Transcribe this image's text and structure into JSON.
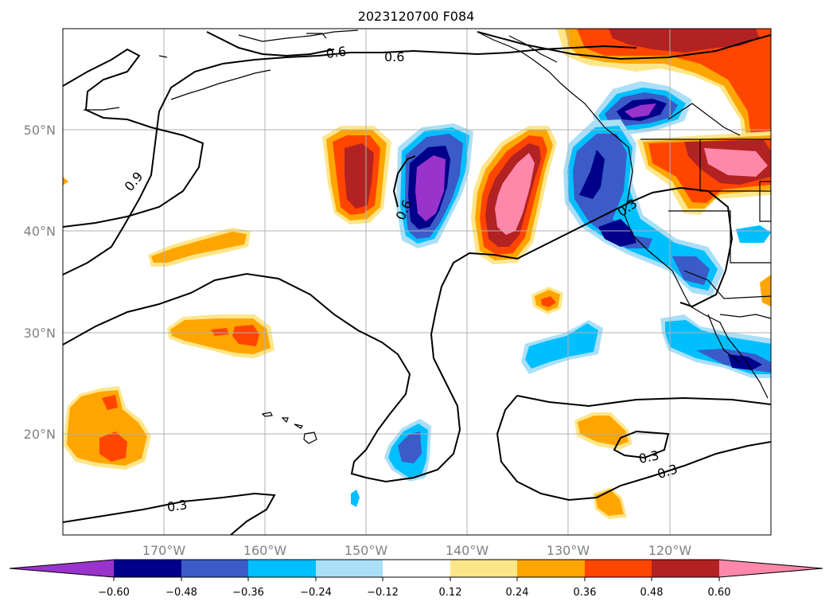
{
  "map": {
    "title": "2023120700 F084",
    "projection": "cylindrical",
    "lon_range": [
      -180,
      -110
    ],
    "lat_range": [
      10,
      60
    ],
    "grid": true,
    "lat_tick_labels": [
      "20°N",
      "30°N",
      "40°N",
      "50°N"
    ],
    "lon_tick_labels": [
      "170°W",
      "160°W",
      "150°W",
      "140°W",
      "130°W",
      "120°W"
    ],
    "contour_labels": [
      "0.6",
      "0.9",
      "0.6",
      "0.3",
      "0.6",
      "0.3",
      "0.3",
      "0.3"
    ]
  },
  "colorbar": {
    "tick_labels": [
      "−0.60",
      "−0.48",
      "−0.36",
      "−0.24",
      "−0.12",
      "0.12",
      "0.24",
      "0.36",
      "0.48",
      "0.60"
    ],
    "bins": [
      {
        "range": "< -0.60",
        "color": "#9933cc"
      },
      {
        "range": "-0.60 to -0.48",
        "color": "#00008b"
      },
      {
        "range": "-0.48 to -0.36",
        "color": "#3a5bc8"
      },
      {
        "range": "-0.36 to -0.24",
        "color": "#00bfff"
      },
      {
        "range": "-0.24 to -0.12",
        "color": "#aadff7"
      },
      {
        "range": "-0.12 to 0.12",
        "color": "#ffffff"
      },
      {
        "range": "0.12 to 0.24",
        "color": "#fde68a"
      },
      {
        "range": "0.24 to 0.36",
        "color": "#ffa500"
      },
      {
        "range": "0.36 to 0.48",
        "color": "#ff4500"
      },
      {
        "range": "0.48 to 0.60",
        "color": "#b22222"
      },
      {
        "range": "> 0.60",
        "color": "#ff88aa"
      }
    ]
  }
}
